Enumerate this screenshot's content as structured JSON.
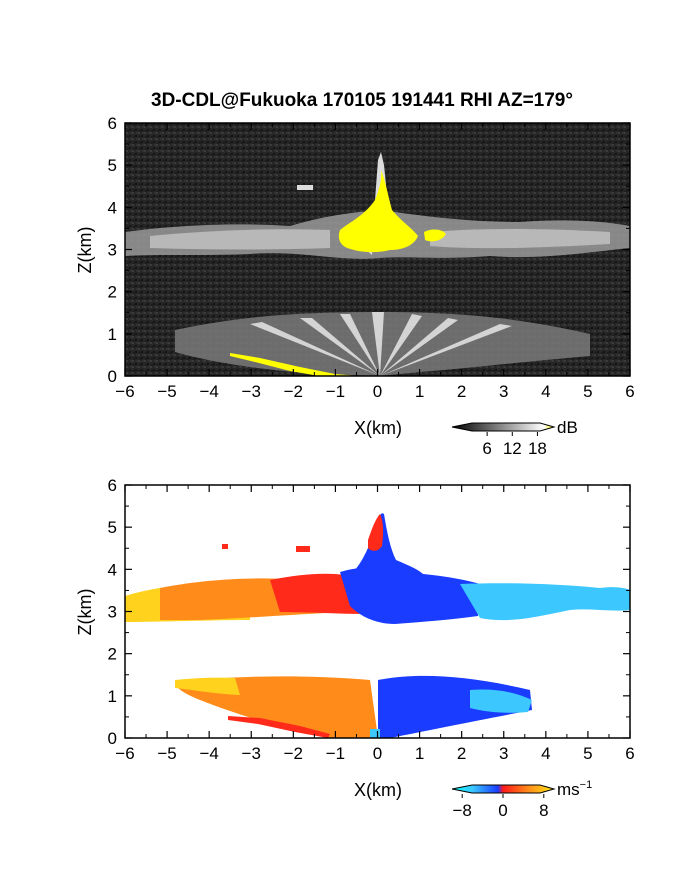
{
  "title": "3D-CDL@Fukuoka 170105 191441 RHI AZ=179°",
  "chart_data": [
    {
      "type": "heatmap",
      "quantity": "reflectivity",
      "xlabel": "X(km)",
      "ylabel": "Z(km)",
      "xlim": [
        -6,
        6
      ],
      "ylim": [
        0,
        6
      ],
      "xticks": [
        "−6",
        "−5",
        "−4",
        "−3",
        "−2",
        "−1",
        "0",
        "1",
        "2",
        "3",
        "4",
        "5",
        "6"
      ],
      "yticks": [
        "0",
        "1",
        "2",
        "3",
        "4",
        "5",
        "6"
      ],
      "colorbar": {
        "unit": "dB",
        "ticks": [
          "6",
          "12",
          "18"
        ],
        "range": [
          0,
          21
        ]
      },
      "colors": {
        "background": "#202020",
        "high": "#ffff00",
        "layer": "#a8a8a8"
      },
      "features": [
        {
          "label": "cloud layer",
          "x_range": [
            -6,
            6
          ],
          "z_range": [
            2.9,
            3.5
          ]
        },
        {
          "label": "low-level fan",
          "x_range": [
            -5,
            5
          ],
          "z_range": [
            0,
            1.4
          ]
        },
        {
          "label": "convective core",
          "x_range": [
            -0.8,
            1.6
          ],
          "z_range": [
            3.0,
            5.3
          ]
        }
      ]
    },
    {
      "type": "heatmap",
      "quantity": "Doppler velocity",
      "xlabel": "X(km)",
      "ylabel": "Z(km)",
      "xlim": [
        -6,
        6
      ],
      "ylim": [
        0,
        6
      ],
      "xticks": [
        "−6",
        "−5",
        "−4",
        "−3",
        "−2",
        "−1",
        "0",
        "1",
        "2",
        "3",
        "4",
        "5",
        "6"
      ],
      "yticks": [
        "0",
        "1",
        "2",
        "3",
        "4",
        "5",
        "6"
      ],
      "colorbar": {
        "unit": "ms",
        "unit_exp": "−1",
        "ticks": [
          "−8",
          "0",
          "8"
        ],
        "range": [
          -10,
          10
        ]
      },
      "colors": {
        "negative": "#1a3cff",
        "near_zero": "#ff2a1a",
        "positive": "#ffd21e",
        "far_negative": "#3cc8ff"
      }
    }
  ]
}
